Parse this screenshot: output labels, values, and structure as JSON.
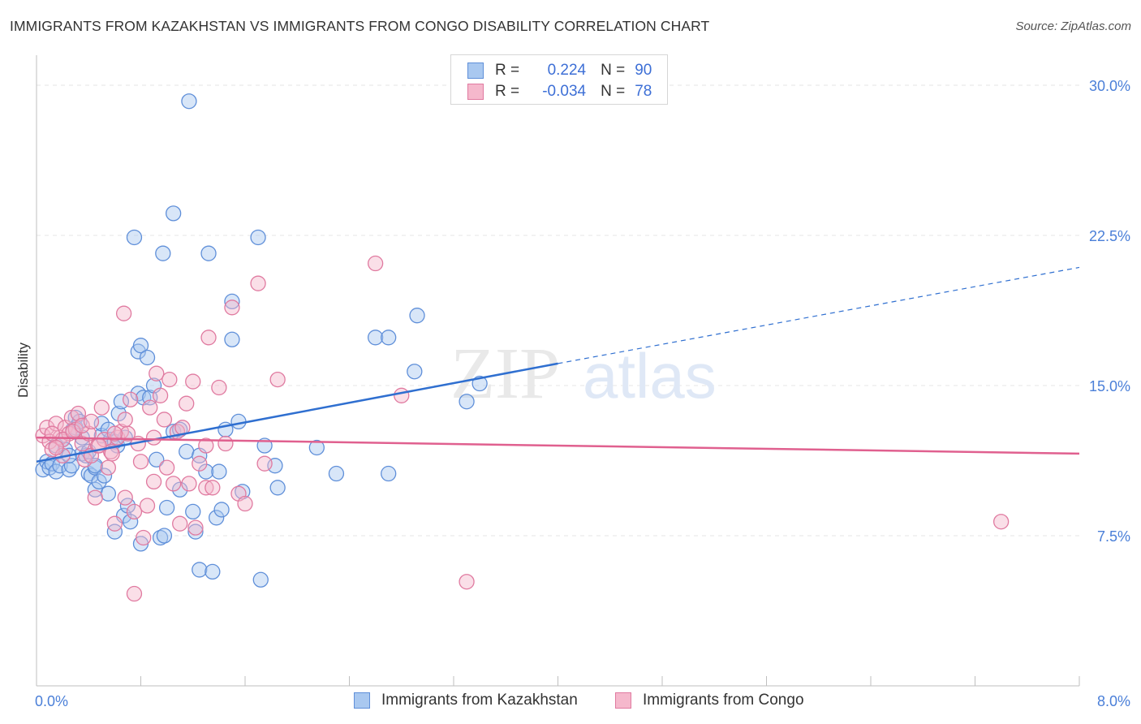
{
  "title": "IMMIGRANTS FROM KAZAKHSTAN VS IMMIGRANTS FROM CONGO DISABILITY CORRELATION CHART",
  "source": "Source: ZipAtlas.com",
  "watermark": {
    "zip": "ZIP",
    "atlas": "atlas"
  },
  "legend": {
    "rows": [
      {
        "r_label": "R =",
        "r_value": "0.224",
        "n_label": "N =",
        "n_value": "90"
      },
      {
        "r_label": "R =",
        "r_value": "-0.034",
        "n_label": "N =",
        "n_value": "78"
      }
    ]
  },
  "colors": {
    "kazakhstan_fill": "#a9c8f0",
    "kazakhstan_stroke": "#5f8fd9",
    "kazakhstan_line": "#2f6fd0",
    "congo_fill": "#f5b8cc",
    "congo_stroke": "#e07aa0",
    "congo_line": "#e0608f",
    "tick": "#4a7fd8",
    "grid": "#e6e6e6"
  },
  "chart_data": {
    "type": "scatter",
    "title": "IMMIGRANTS FROM KAZAKHSTAN VS IMMIGRANTS FROM CONGO DISABILITY CORRELATION CHART",
    "xlabel": "",
    "ylabel": "Disability",
    "xlim": [
      0,
      8
    ],
    "ylim": [
      0,
      31.5
    ],
    "x_ticks": [
      "0.0%",
      "8.0%"
    ],
    "y_ticks": [
      {
        "value": 7.5,
        "label": "7.5%"
      },
      {
        "value": 15,
        "label": "15.0%"
      },
      {
        "value": 22.5,
        "label": "22.5%"
      },
      {
        "value": 30,
        "label": "30.0%"
      }
    ],
    "grid": true,
    "legend_position": "top-center",
    "series": [
      {
        "name": "Immigrants from Kazakhstan",
        "r": 0.224,
        "n": 90,
        "trend": {
          "x0": 0,
          "y0": 11.2,
          "x1": 4.0,
          "y1": 16.1,
          "dashed_to_x": 8.0,
          "dashed_to_y": 20.9
        },
        "points": [
          [
            0.05,
            10.8
          ],
          [
            0.08,
            11.2
          ],
          [
            0.1,
            10.9
          ],
          [
            0.12,
            11.1
          ],
          [
            0.15,
            10.7
          ],
          [
            0.18,
            11.0
          ],
          [
            0.2,
            12.3
          ],
          [
            0.22,
            11.8
          ],
          [
            0.25,
            10.8
          ],
          [
            0.27,
            11.0
          ],
          [
            0.28,
            12.8
          ],
          [
            0.3,
            13.4
          ],
          [
            0.3,
            12.9
          ],
          [
            0.33,
            13.2
          ],
          [
            0.35,
            11.6
          ],
          [
            0.38,
            11.5
          ],
          [
            0.4,
            11.7
          ],
          [
            0.4,
            10.6
          ],
          [
            0.42,
            10.5
          ],
          [
            0.45,
            10.9
          ],
          [
            0.45,
            9.8
          ],
          [
            0.48,
            10.2
          ],
          [
            0.5,
            12.5
          ],
          [
            0.5,
            13.1
          ],
          [
            0.52,
            10.5
          ],
          [
            0.55,
            9.6
          ],
          [
            0.57,
            12.3
          ],
          [
            0.6,
            7.7
          ],
          [
            0.62,
            12.0
          ],
          [
            0.63,
            13.6
          ],
          [
            0.65,
            14.2
          ],
          [
            0.67,
            8.5
          ],
          [
            0.7,
            9.0
          ],
          [
            0.72,
            8.2
          ],
          [
            0.75,
            22.4
          ],
          [
            0.78,
            14.6
          ],
          [
            0.78,
            16.7
          ],
          [
            0.8,
            7.1
          ],
          [
            0.8,
            17.0
          ],
          [
            0.82,
            14.4
          ],
          [
            0.85,
            16.4
          ],
          [
            0.87,
            14.4
          ],
          [
            0.9,
            15.0
          ],
          [
            0.92,
            11.3
          ],
          [
            0.95,
            7.4
          ],
          [
            0.97,
            21.6
          ],
          [
            0.98,
            7.5
          ],
          [
            1.0,
            8.9
          ],
          [
            1.05,
            12.7
          ],
          [
            1.05,
            23.6
          ],
          [
            1.1,
            9.8
          ],
          [
            1.1,
            12.8
          ],
          [
            1.15,
            11.7
          ],
          [
            1.17,
            29.2
          ],
          [
            1.2,
            8.7
          ],
          [
            1.22,
            7.7
          ],
          [
            1.25,
            5.8
          ],
          [
            1.3,
            10.7
          ],
          [
            1.32,
            21.6
          ],
          [
            1.35,
            5.7
          ],
          [
            1.38,
            8.4
          ],
          [
            1.4,
            10.7
          ],
          [
            1.42,
            8.8
          ],
          [
            1.45,
            12.8
          ],
          [
            1.5,
            19.2
          ],
          [
            1.5,
            17.3
          ],
          [
            1.55,
            13.2
          ],
          [
            1.58,
            9.7
          ],
          [
            1.7,
            22.4
          ],
          [
            1.72,
            5.3
          ],
          [
            1.75,
            12.0
          ],
          [
            1.83,
            11.0
          ],
          [
            1.85,
            9.9
          ],
          [
            2.15,
            11.9
          ],
          [
            2.3,
            10.6
          ],
          [
            2.6,
            17.4
          ],
          [
            2.7,
            17.4
          ],
          [
            2.7,
            10.6
          ],
          [
            2.9,
            15.7
          ],
          [
            2.92,
            18.5
          ],
          [
            3.3,
            14.2
          ],
          [
            3.4,
            15.1
          ],
          [
            0.6,
            12.2
          ],
          [
            0.35,
            12.4
          ],
          [
            0.15,
            12.0
          ],
          [
            0.25,
            11.5
          ],
          [
            0.45,
            11.0
          ],
          [
            1.25,
            11.5
          ],
          [
            0.55,
            12.8
          ],
          [
            0.68,
            12.4
          ]
        ]
      },
      {
        "name": "Immigrants from Congo",
        "r": -0.034,
        "n": 78,
        "trend": {
          "x0": 0,
          "y0": 12.4,
          "x1": 8.0,
          "y1": 11.6
        },
        "points": [
          [
            0.05,
            12.5
          ],
          [
            0.08,
            12.9
          ],
          [
            0.1,
            12.2
          ],
          [
            0.12,
            11.8
          ],
          [
            0.15,
            13.1
          ],
          [
            0.18,
            12.4
          ],
          [
            0.2,
            11.5
          ],
          [
            0.22,
            12.9
          ],
          [
            0.25,
            12.6
          ],
          [
            0.27,
            13.4
          ],
          [
            0.3,
            12.8
          ],
          [
            0.32,
            13.6
          ],
          [
            0.35,
            12.1
          ],
          [
            0.37,
            11.3
          ],
          [
            0.4,
            12.6
          ],
          [
            0.42,
            11.5
          ],
          [
            0.45,
            9.4
          ],
          [
            0.47,
            12.0
          ],
          [
            0.5,
            13.9
          ],
          [
            0.52,
            12.3
          ],
          [
            0.55,
            10.9
          ],
          [
            0.57,
            11.7
          ],
          [
            0.6,
            8.1
          ],
          [
            0.62,
            12.4
          ],
          [
            0.65,
            12.7
          ],
          [
            0.67,
            18.6
          ],
          [
            0.68,
            9.4
          ],
          [
            0.7,
            12.6
          ],
          [
            0.72,
            14.3
          ],
          [
            0.75,
            8.7
          ],
          [
            0.75,
            4.6
          ],
          [
            0.78,
            12.1
          ],
          [
            0.8,
            11.2
          ],
          [
            0.82,
            7.4
          ],
          [
            0.85,
            9.0
          ],
          [
            0.87,
            13.9
          ],
          [
            0.9,
            12.4
          ],
          [
            0.92,
            15.6
          ],
          [
            0.95,
            14.5
          ],
          [
            0.98,
            13.3
          ],
          [
            1.0,
            10.9
          ],
          [
            1.02,
            15.3
          ],
          [
            1.05,
            10.1
          ],
          [
            1.08,
            12.7
          ],
          [
            1.1,
            8.1
          ],
          [
            1.12,
            12.9
          ],
          [
            1.15,
            14.1
          ],
          [
            1.17,
            10.1
          ],
          [
            1.2,
            15.2
          ],
          [
            1.22,
            7.9
          ],
          [
            1.25,
            11.1
          ],
          [
            1.3,
            9.9
          ],
          [
            1.32,
            17.4
          ],
          [
            1.35,
            9.9
          ],
          [
            1.4,
            14.9
          ],
          [
            1.45,
            12.1
          ],
          [
            1.5,
            18.9
          ],
          [
            1.55,
            9.6
          ],
          [
            1.6,
            9.1
          ],
          [
            1.7,
            20.1
          ],
          [
            1.75,
            11.1
          ],
          [
            1.85,
            15.3
          ],
          [
            2.6,
            21.1
          ],
          [
            2.8,
            14.5
          ],
          [
            3.3,
            5.2
          ],
          [
            7.4,
            8.2
          ],
          [
            0.2,
            12.3
          ],
          [
            0.28,
            12.7
          ],
          [
            0.48,
            12.0
          ],
          [
            0.6,
            12.6
          ],
          [
            0.35,
            13.0
          ],
          [
            0.15,
            11.9
          ],
          [
            0.42,
            13.2
          ],
          [
            1.3,
            12.0
          ],
          [
            0.9,
            10.2
          ],
          [
            0.68,
            13.3
          ],
          [
            0.12,
            12.6
          ],
          [
            0.58,
            11.6
          ]
        ]
      }
    ]
  }
}
